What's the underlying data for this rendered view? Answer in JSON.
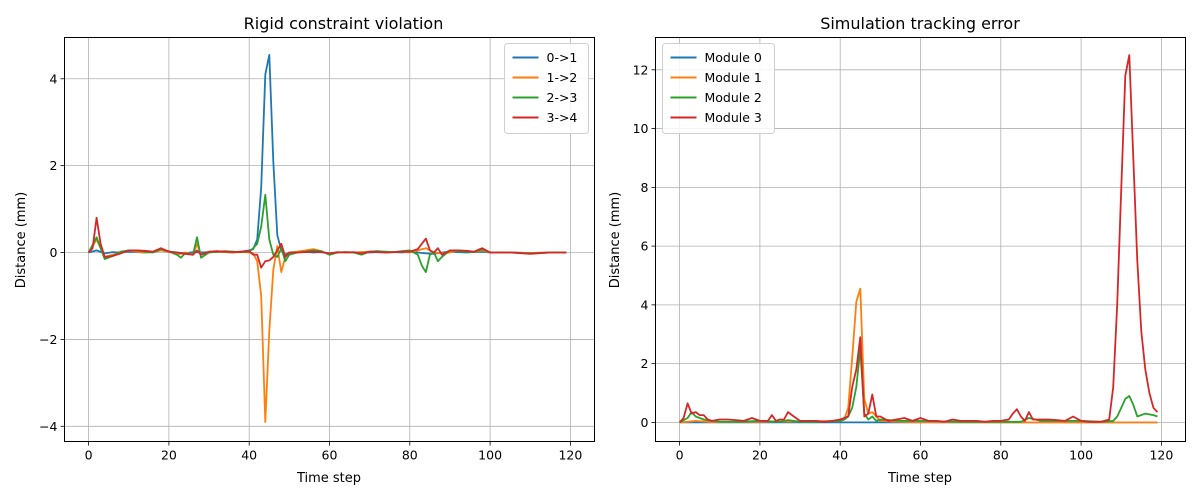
{
  "chart_data": [
    {
      "type": "line",
      "title": "Rigid constraint violation",
      "xlabel": "Time step",
      "ylabel": "Distance (mm)",
      "xlim": [
        -6,
        126
      ],
      "ylim": [
        -4.35,
        4.95
      ],
      "xticks": [
        0,
        20,
        40,
        60,
        80,
        100,
        120
      ],
      "yticks": [
        -4,
        -2,
        0,
        2,
        4
      ],
      "xtick_labels": [
        "0",
        "20",
        "40",
        "60",
        "80",
        "100",
        "120"
      ],
      "ytick_labels": [
        "−4",
        "−2",
        "0",
        "2",
        "4"
      ],
      "grid": true,
      "legend_position": "upper-right",
      "series": [
        {
          "name": "0->1",
          "color": "#1f77b4",
          "x": [
            0,
            2,
            4,
            6,
            8,
            10,
            12,
            14,
            16,
            18,
            20,
            22,
            24,
            26,
            28,
            30,
            32,
            34,
            36,
            38,
            40,
            41,
            42,
            43,
            44,
            45,
            46,
            47,
            48,
            49,
            50,
            52,
            54,
            56,
            58,
            60,
            62,
            64,
            66,
            68,
            70,
            72,
            74,
            76,
            78,
            80,
            82,
            84,
            86,
            88,
            90,
            92,
            94,
            96,
            98,
            100,
            105,
            110,
            115,
            119
          ],
          "y": [
            0,
            0.05,
            -0.02,
            0.01,
            0,
            0.02,
            0.01,
            0,
            0.01,
            0.05,
            0.02,
            0,
            -0.02,
            0.01,
            0,
            0.01,
            0.02,
            0.01,
            0,
            0.02,
            0.05,
            0.08,
            0.3,
            1.5,
            4.1,
            4.55,
            2.1,
            0.4,
            0.05,
            -0.05,
            0,
            0.01,
            0.02,
            0,
            0.01,
            -0.02,
            0,
            0.01,
            0,
            0.01,
            0,
            0.01,
            0,
            0.01,
            0,
            0.02,
            0,
            -0.02,
            -0.03,
            0,
            0.02,
            0.01,
            0,
            0.01,
            0.02,
            0,
            0,
            -0.01,
            0,
            0
          ]
        },
        {
          "name": "1->2",
          "color": "#ff7f0e",
          "x": [
            0,
            2,
            4,
            6,
            8,
            10,
            12,
            14,
            16,
            18,
            20,
            22,
            24,
            26,
            27,
            28,
            30,
            32,
            34,
            36,
            38,
            40,
            41,
            42,
            43,
            44,
            45,
            46,
            47,
            48,
            49,
            50,
            52,
            54,
            56,
            58,
            60,
            62,
            64,
            66,
            68,
            70,
            72,
            74,
            76,
            78,
            80,
            82,
            84,
            86,
            88,
            90,
            92,
            94,
            96,
            98,
            100,
            105,
            110,
            115,
            119
          ],
          "y": [
            0,
            0.3,
            -0.1,
            -0.05,
            0,
            0.05,
            0.02,
            0,
            0.01,
            0.05,
            0.02,
            -0.05,
            0,
            -0.05,
            0.2,
            -0.05,
            0,
            0.02,
            0.01,
            0,
            0.01,
            0,
            -0.02,
            -0.2,
            -1.0,
            -3.9,
            -1.8,
            -0.4,
            0.15,
            -0.45,
            -0.1,
            0,
            0.02,
            0.05,
            0.08,
            0.03,
            -0.05,
            0,
            0.01,
            0,
            0.01,
            0.02,
            0.03,
            0,
            0.01,
            0.02,
            0,
            0.05,
            0.1,
            0,
            -0.02,
            0,
            0.05,
            0.03,
            0.01,
            0.05,
            0,
            0,
            -0.01,
            0,
            0
          ]
        },
        {
          "name": "2->3",
          "color": "#2ca02c",
          "x": [
            0,
            2,
            4,
            6,
            8,
            10,
            12,
            14,
            16,
            18,
            20,
            22,
            23,
            24,
            26,
            27,
            28,
            30,
            32,
            34,
            36,
            38,
            40,
            41,
            42,
            43,
            44,
            45,
            46,
            47,
            48,
            49,
            50,
            52,
            54,
            56,
            58,
            60,
            62,
            64,
            66,
            68,
            70,
            72,
            74,
            76,
            78,
            80,
            82,
            83,
            84,
            85,
            86,
            87,
            88,
            90,
            92,
            94,
            96,
            98,
            100,
            105,
            110,
            115,
            119
          ],
          "y": [
            0,
            0.35,
            -0.15,
            -0.08,
            0.02,
            0.05,
            0.05,
            0.02,
            0,
            0.08,
            0.03,
            -0.05,
            -0.12,
            -0.02,
            -0.05,
            0.35,
            -0.12,
            0,
            0.02,
            0.03,
            0.02,
            0.01,
            0.02,
            0.1,
            0.2,
            0.6,
            1.33,
            0.3,
            -0.05,
            -0.1,
            0.1,
            -0.2,
            -0.05,
            0,
            0.02,
            0.05,
            0.03,
            -0.05,
            0,
            0.01,
            0,
            -0.05,
            0.02,
            0.03,
            0.02,
            0.01,
            0.03,
            0.05,
            -0.05,
            -0.3,
            -0.45,
            -0.05,
            0,
            -0.2,
            -0.1,
            0.05,
            0.03,
            0.02,
            0.01,
            0.08,
            0,
            0,
            -0.02,
            0,
            0
          ]
        },
        {
          "name": "3->4",
          "color": "#d62728",
          "x": [
            0,
            1,
            2,
            3,
            4,
            6,
            8,
            10,
            12,
            14,
            16,
            18,
            20,
            22,
            24,
            26,
            27,
            28,
            30,
            32,
            34,
            36,
            38,
            40,
            41,
            42,
            43,
            44,
            45,
            46,
            47,
            48,
            49,
            50,
            52,
            54,
            56,
            58,
            60,
            62,
            64,
            66,
            68,
            70,
            72,
            74,
            76,
            78,
            80,
            82,
            83,
            84,
            85,
            86,
            87,
            88,
            90,
            92,
            94,
            96,
            98,
            100,
            105,
            110,
            115,
            119
          ],
          "y": [
            0,
            0.1,
            0.8,
            0.2,
            -0.1,
            -0.08,
            -0.02,
            0.05,
            0.05,
            0.04,
            0.02,
            0.1,
            0.02,
            0,
            -0.03,
            -0.05,
            0.05,
            -0.05,
            0.02,
            0.03,
            0.02,
            0.01,
            0.02,
            0.03,
            -0.05,
            -0.05,
            -0.35,
            -0.2,
            -0.18,
            -0.1,
            0.05,
            0.2,
            -0.1,
            0,
            0,
            0.01,
            0.02,
            0.01,
            -0.02,
            0.01,
            0,
            0.01,
            -0.02,
            0.02,
            0.01,
            0,
            0.01,
            0.02,
            0.02,
            0.08,
            0.2,
            0.32,
            0.05,
            0,
            0.1,
            -0.05,
            0.05,
            0.05,
            0.04,
            0.02,
            0.1,
            0,
            0,
            -0.03,
            0,
            0
          ]
        }
      ]
    },
    {
      "type": "line",
      "title": "Simulation tracking error",
      "xlabel": "Time step",
      "ylabel": "Distance (mm)",
      "xlim": [
        -6,
        126
      ],
      "ylim": [
        -0.65,
        13.1
      ],
      "xticks": [
        0,
        20,
        40,
        60,
        80,
        100,
        120
      ],
      "yticks": [
        0,
        2,
        4,
        6,
        8,
        10,
        12
      ],
      "xtick_labels": [
        "0",
        "20",
        "40",
        "60",
        "80",
        "100",
        "120"
      ],
      "ytick_labels": [
        "0",
        "2",
        "4",
        "6",
        "8",
        "10",
        "12"
      ],
      "grid": true,
      "legend_position": "upper-left",
      "series": [
        {
          "name": "Module 0",
          "color": "#1f77b4",
          "x": [
            0,
            5,
            10,
            20,
            30,
            40,
            119
          ],
          "y": [
            0,
            0,
            0,
            0,
            0,
            0,
            0
          ]
        },
        {
          "name": "Module 1",
          "color": "#ff7f0e",
          "x": [
            0,
            2,
            4,
            6,
            8,
            10,
            20,
            30,
            40,
            41,
            42,
            43,
            44,
            45,
            46,
            47,
            48,
            49,
            50,
            55,
            60,
            80,
            100,
            119
          ],
          "y": [
            0,
            0.02,
            0.05,
            0.03,
            0.01,
            0.01,
            0.02,
            0.03,
            0.05,
            0.1,
            0.5,
            2.2,
            4.1,
            4.55,
            0.8,
            0.3,
            0.35,
            0.2,
            0.05,
            0.02,
            0.01,
            0,
            0,
            0
          ]
        },
        {
          "name": "Module 2",
          "color": "#2ca02c",
          "x": [
            0,
            2,
            3,
            4,
            5,
            6,
            8,
            10,
            15,
            20,
            25,
            27,
            30,
            35,
            40,
            41,
            42,
            43,
            44,
            45,
            46,
            47,
            48,
            49,
            50,
            55,
            60,
            70,
            80,
            85,
            87,
            90,
            100,
            105,
            108,
            109,
            110,
            111,
            112,
            113,
            114,
            116,
            118,
            119
          ],
          "y": [
            0,
            0.15,
            0.35,
            0.2,
            0.15,
            0.1,
            0.05,
            0.02,
            0.02,
            0.05,
            0.02,
            0.08,
            0.02,
            0.02,
            0.05,
            0.1,
            0.2,
            0.5,
            1.2,
            2.5,
            0.3,
            0.1,
            0.2,
            0.05,
            0.1,
            0.05,
            0.05,
            0.02,
            0.02,
            0.02,
            0.15,
            0.05,
            0.05,
            0.02,
            0.05,
            0.2,
            0.5,
            0.8,
            0.9,
            0.6,
            0.2,
            0.3,
            0.25,
            0.2
          ]
        },
        {
          "name": "Module 3",
          "color": "#d62728",
          "x": [
            0,
            1,
            2,
            3,
            4,
            5,
            6,
            7,
            8,
            10,
            12,
            14,
            16,
            18,
            20,
            22,
            23,
            24,
            25,
            26,
            27,
            28,
            30,
            32,
            34,
            36,
            38,
            40,
            41,
            42,
            43,
            44,
            45,
            46,
            47,
            48,
            49,
            50,
            52,
            54,
            56,
            58,
            60,
            62,
            64,
            66,
            68,
            70,
            72,
            74,
            76,
            78,
            80,
            82,
            83,
            84,
            85,
            86,
            87,
            88,
            90,
            92,
            94,
            96,
            98,
            100,
            102,
            105,
            107,
            108,
            109,
            110,
            111,
            112,
            113,
            114,
            115,
            116,
            117,
            118,
            119
          ],
          "y": [
            0,
            0.15,
            0.65,
            0.3,
            0.35,
            0.25,
            0.25,
            0.1,
            0.05,
            0.1,
            0.1,
            0.08,
            0.05,
            0.15,
            0.05,
            0.05,
            0.25,
            0.05,
            0.1,
            0.1,
            0.35,
            0.25,
            0.05,
            0.05,
            0.05,
            0.02,
            0.05,
            0.1,
            0.15,
            0.2,
            1.2,
            1.8,
            2.9,
            0.2,
            0.3,
            0.95,
            0.2,
            0.2,
            0.05,
            0.1,
            0.15,
            0.05,
            0.15,
            0.05,
            0.05,
            0.02,
            0.1,
            0.05,
            0.05,
            0.05,
            0.02,
            0.05,
            0.05,
            0.1,
            0.3,
            0.45,
            0.2,
            0.05,
            0.35,
            0.1,
            0.1,
            0.1,
            0.08,
            0.05,
            0.2,
            0.05,
            0.02,
            0.02,
            0.1,
            1.2,
            4.0,
            8.0,
            11.8,
            12.5,
            9.0,
            5.5,
            3.1,
            1.8,
            1.0,
            0.5,
            0.35
          ]
        }
      ]
    }
  ]
}
